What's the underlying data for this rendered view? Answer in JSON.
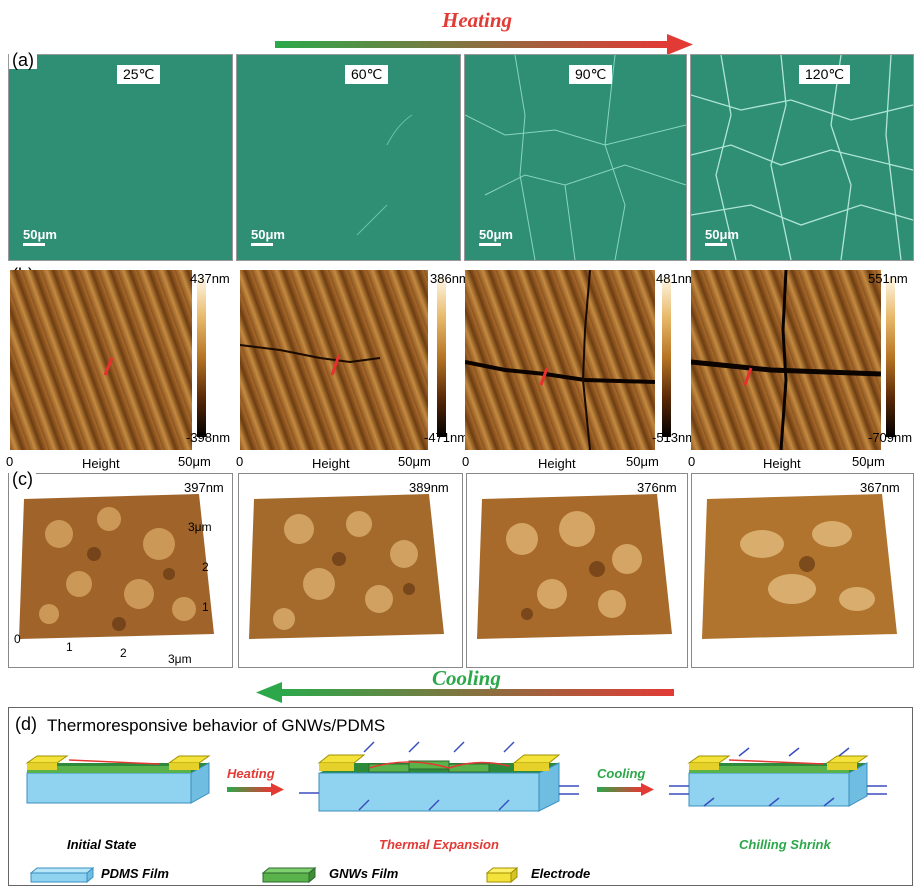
{
  "top_arrow": {
    "label": "Heating"
  },
  "bottom_arrow": {
    "label": "Cooling"
  },
  "panel_a": {
    "label": "(a)",
    "images": [
      {
        "temp": "25℃",
        "scale": "50μm"
      },
      {
        "temp": "60℃",
        "scale": "50μm"
      },
      {
        "temp": "90℃",
        "scale": "50μm"
      },
      {
        "temp": "120℃",
        "scale": "50μm"
      }
    ]
  },
  "panel_b": {
    "label": "(b)",
    "images": [
      {
        "max": "437nm",
        "min": "-398nm",
        "x0": "0",
        "xlabel": "Height",
        "x1": "50μm"
      },
      {
        "max": "386nm",
        "min": "-471nm",
        "x0": "0",
        "xlabel": "Height",
        "x1": "50μm"
      },
      {
        "max": "481nm",
        "min": "-513nm",
        "x0": "0",
        "xlabel": "Height",
        "x1": "50μm"
      },
      {
        "max": "551nm",
        "min": "-709nm",
        "x0": "0",
        "xlabel": "Height",
        "x1": "50μm"
      }
    ]
  },
  "panel_c": {
    "label": "(c)",
    "images": [
      {
        "zmax": "397nm"
      },
      {
        "zmax": "389nm"
      },
      {
        "zmax": "376nm"
      },
      {
        "zmax": "367nm"
      }
    ],
    "ticks": {
      "y_top": "3μm",
      "y2": "2",
      "y1": "1",
      "y0": "0",
      "x0": "0",
      "x1": "1",
      "x2": "2",
      "x3": "3μm"
    }
  },
  "panel_d": {
    "label": "(d)",
    "title": "Thermoresponsive behavior of GNWs/PDMS",
    "arrow1": "Heating",
    "arrow2": "Cooling",
    "state1": "Initial State",
    "state2": "Thermal Expansion",
    "state3": "Chilling Shrink",
    "legend": [
      "PDMS Film",
      "GNWs Film",
      "Electrode"
    ]
  },
  "colors": {
    "micro_green": "#2e8f75",
    "afm_brown": "#a86a2a",
    "heating_red": "#e23a35",
    "cooling_green": "#2ca84a",
    "pdms_blue": "#8fd3f0",
    "gnw_green": "#59b34a",
    "electrode_yellow": "#f2e23a"
  }
}
